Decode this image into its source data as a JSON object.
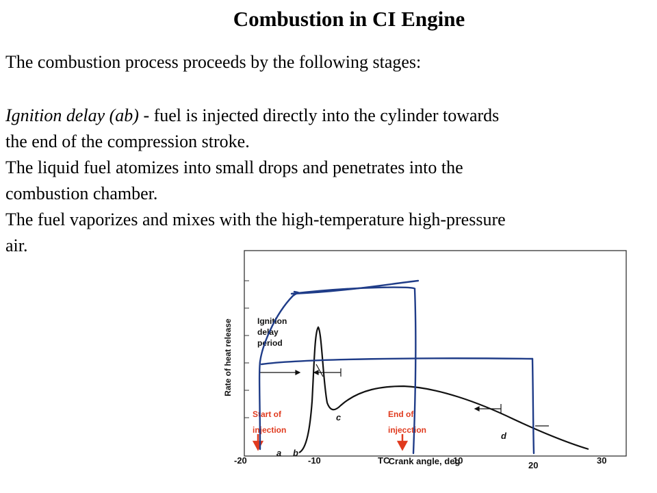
{
  "title": "Combustion in CI Engine",
  "intro": "The combustion process proceeds by the following stages:",
  "paragraph": {
    "line1_italic": "Ignition delay (ab)",
    "line1_rest": " - fuel is injected directly into the cylinder towards",
    "line2": "the end of  the compression stroke.",
    "line3": " The liquid fuel atomizes into small drops and  penetrates into the",
    "line4": "combustion chamber.",
    "line5": "The fuel vaporizes and mixes with the high-temperature high-pressure",
    "line6": "air."
  },
  "figure": {
    "ylabel": "Rate of heat release",
    "xlabel": "Crank angle, deg",
    "delay_label": [
      "Ignition",
      "delay",
      "period"
    ],
    "point_labels": {
      "a": "a",
      "b": "b",
      "c": "c",
      "d": "d"
    },
    "injection_start": [
      "Start of",
      "injection"
    ],
    "injection_end": [
      "End of",
      "injecction"
    ],
    "x_ticks": [
      "-20",
      "-10",
      "TC",
      "10",
      "20",
      "30"
    ],
    "colors": {
      "annotation": "#e03a1e",
      "pen": "#1f3c88",
      "curve": "#111111",
      "frame": "#333333"
    }
  }
}
